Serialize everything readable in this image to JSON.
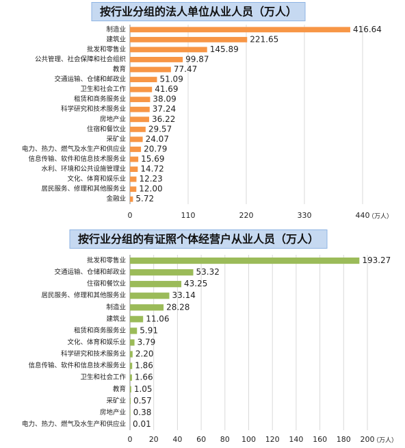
{
  "chart_data": [
    {
      "type": "bar",
      "orientation": "horizontal",
      "title": "按行业分组的法人单位从业人员（万人）",
      "categories": [
        "制造业",
        "建筑业",
        "批发和零售业",
        "公共管理、社会保障和社会组织",
        "教育",
        "交通运输、仓储和邮政业",
        "卫生和社会工作",
        "租赁和商务服务业",
        "科学研究和技术服务业",
        "房地产业",
        "住宿和餐饮业",
        "采矿业",
        "电力、热力、燃气及水生产和供应业",
        "信息传输、软件和信息技术服务业",
        "水利、环境和公共设施管理业",
        "文化、体育和娱乐业",
        "居民服务、修理和其他服务业",
        "金融业"
      ],
      "values": [
        416.64,
        221.65,
        145.89,
        99.87,
        77.47,
        51.09,
        41.69,
        38.09,
        37.24,
        36.22,
        29.57,
        24.07,
        20.79,
        15.69,
        14.72,
        12.23,
        12.0,
        5.72
      ],
      "value_labels": [
        "416.64",
        "221.65",
        "145.89",
        "99.87",
        "77.47",
        "51.09",
        "41.69",
        "38.09",
        "37.24",
        "36.22",
        "29.57",
        "24.07",
        "20.79",
        "15.69",
        "14.72",
        "12.23",
        "12.00",
        "5.72"
      ],
      "color": "#f79646",
      "xlim": [
        0,
        440
      ],
      "xticks": [
        0,
        110,
        220,
        330,
        440
      ],
      "xlabel": "（万人）",
      "grid": true
    },
    {
      "type": "bar",
      "orientation": "horizontal",
      "title": "按行业分组的有证照个体经营户从业人员（万人）",
      "categories": [
        "批发和零售业",
        "交通运输、仓储和邮政业",
        "住宿和餐饮业",
        "居民服务、修理和其他服务业",
        "制造业",
        "建筑业",
        "租赁和商务服务业",
        "文化、体育和娱乐业",
        "科学研究和技术服务业",
        "信息传输、软件和信息技术服务业",
        "卫生和社会工作",
        "教育",
        "采矿业",
        "房地产业",
        "电力、热力、燃气及水生产和供应业"
      ],
      "values": [
        193.27,
        53.32,
        43.25,
        33.14,
        28.28,
        11.06,
        5.91,
        3.79,
        2.2,
        1.86,
        1.66,
        1.05,
        0.57,
        0.38,
        0.01
      ],
      "value_labels": [
        "193.27",
        "53.32",
        "43.25",
        "33.14",
        "28.28",
        "11.06",
        "5.91",
        "3.79",
        "2.20",
        "1.86",
        "1.66",
        "1.05",
        "0.57",
        "0.38",
        "0.01"
      ],
      "color": "#9bbb59",
      "xlim": [
        0,
        200
      ],
      "xticks": [
        0,
        20,
        40,
        60,
        80,
        100,
        120,
        140,
        160,
        180,
        200
      ],
      "xlabel": "（万人）",
      "grid": true
    }
  ]
}
